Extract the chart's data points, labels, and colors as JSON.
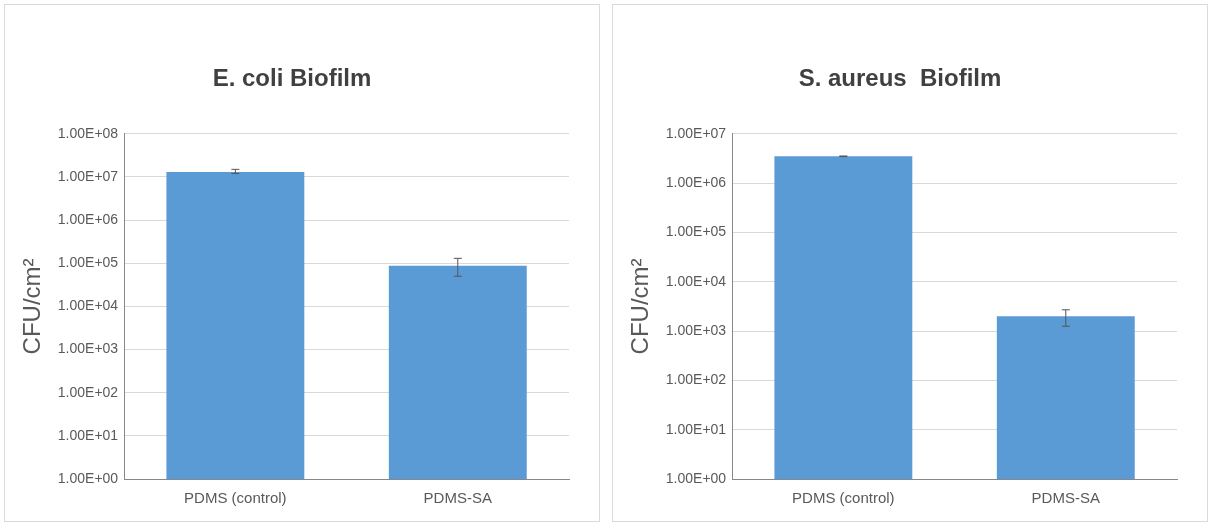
{
  "chart_data": [
    {
      "type": "bar",
      "title": "E. coli Biofilm",
      "ylabel": "CFU/cm²",
      "categories": [
        "PDMS (control)",
        "PDMS-SA"
      ],
      "series": [
        {
          "color": "#5b9bd5",
          "values": [
            13000000,
            87000
          ],
          "errors": [
            [
              12000000,
              15000000
            ],
            [
              50000,
              130000
            ]
          ]
        }
      ],
      "log": true,
      "ylim": [
        1,
        100000000
      ],
      "yticks": [
        {
          "value": 1,
          "label": "1.00E+00"
        },
        {
          "value": 10,
          "label": "1.00E+01"
        },
        {
          "value": 100,
          "label": "1.00E+02"
        },
        {
          "value": 1000,
          "label": "1.00E+03"
        },
        {
          "value": 10000,
          "label": "1.00E+04"
        },
        {
          "value": 100000,
          "label": "1.00E+05"
        },
        {
          "value": 1000000,
          "label": "1.00E+06"
        },
        {
          "value": 10000000,
          "label": "1.00E+07"
        },
        {
          "value": 100000000,
          "label": "1.00E+08"
        }
      ],
      "grid": "y",
      "legend": false
    },
    {
      "type": "bar",
      "title": "S. aureus  Biofilm",
      "ylabel": "CFU/cm²",
      "categories": [
        "PDMS (control)",
        "PDMS-SA"
      ],
      "series": [
        {
          "color": "#5b9bd5",
          "values": [
            3500000,
            2000
          ],
          "errors": [
            [
              3450000,
              3550000
            ],
            [
              1250,
              2700
            ]
          ]
        }
      ],
      "log": true,
      "ylim": [
        1,
        10000000
      ],
      "yticks": [
        {
          "value": 1,
          "label": "1.00E+00"
        },
        {
          "value": 10,
          "label": "1.00E+01"
        },
        {
          "value": 100,
          "label": "1.00E+02"
        },
        {
          "value": 1000,
          "label": "1.00E+03"
        },
        {
          "value": 10000,
          "label": "1.00E+04"
        },
        {
          "value": 100000,
          "label": "1.00E+05"
        },
        {
          "value": 1000000,
          "label": "1.00E+06"
        },
        {
          "value": 10000000,
          "label": "1.00E+07"
        }
      ],
      "grid": "y",
      "legend": false
    }
  ]
}
